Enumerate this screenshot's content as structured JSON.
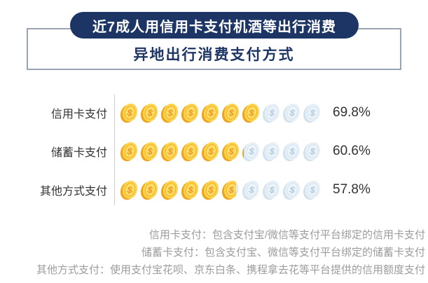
{
  "header": {
    "badge": "近7成人用信用卡支付机酒等出行消费",
    "subtitle": "异地出行消费支付方式"
  },
  "chart_data": {
    "type": "pictogram-bar",
    "icon": "dollar-coin",
    "icons_per_row": 10,
    "icon_unit_percent": 10,
    "categories": [
      "信用卡支付",
      "储蓄卡支付",
      "其他方式支付"
    ],
    "values": [
      69.8,
      60.6,
      57.8
    ],
    "value_labels": [
      "69.8%",
      "60.6%",
      "57.8%"
    ],
    "xlim": [
      0,
      100
    ],
    "legend": "none",
    "grid": "off"
  },
  "footnotes": [
    "信用卡支付：包含支付宝/微信等支付平台绑定的信用卡支付",
    "储蓄卡支付：包含支付宝、微信等支付平台绑定的储蓄卡支付",
    "其他方式支付：使用支付宝花呗、京东白条、携程拿去花等平台提供的信用额度支付"
  ],
  "colors": {
    "navy": "#1c3564",
    "box_border": "#9aa5b4",
    "divider": "#cccccc",
    "label_text": "#333333",
    "value_text": "#333333",
    "footnote_text": "#9c9c9c",
    "gold_edge": "#f0a31c",
    "gold_face": "#ffd44d",
    "gold_inner": "#ffdf66",
    "gold_ring": "#f3b32b",
    "gold_symbol": "#ec9f2e",
    "pale_edge": "#d2e2ee",
    "pale_face": "#e7f0f7",
    "pale_inner": "#eef5fa",
    "pale_ring": "#d8e6f0",
    "pale_symbol": "#b7cfe0"
  }
}
